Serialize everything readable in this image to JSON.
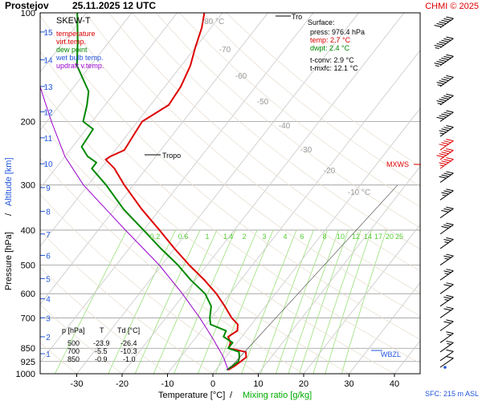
{
  "header": {
    "station": "Prostejov",
    "datetime": "25.11.2025 12 UTC",
    "copyright": "CHMI © 2025"
  },
  "legend": {
    "title": "SKEW-T",
    "items": [
      {
        "label": "temperature",
        "color": "#dd0000"
      },
      {
        "label": "virt.temp.",
        "color": "#dd0000"
      },
      {
        "label": "dew point",
        "color": "#008800"
      },
      {
        "label": "wet bulb temp.",
        "color": "#2255dd"
      },
      {
        "label": "updraft v.temp.",
        "color": "#9900cc"
      }
    ]
  },
  "surface": {
    "title": "Surface:",
    "press": "press: 976.4 hPa",
    "temp": "temp: 2.7 °C",
    "dwpt": "dwpt: 2.4 °C",
    "tconv": "t-conv: 2.9 °C",
    "tmxfc": "t-mxfc: 12.1 °C"
  },
  "table": {
    "headers": [
      "p [hPa]",
      "T",
      "Td [°C]"
    ],
    "rows": [
      [
        "500",
        "-23.9",
        "-26.4"
      ],
      [
        "700",
        "-5.5",
        "-10.3"
      ],
      [
        "850",
        "-0.9",
        "-1.0"
      ]
    ]
  },
  "labels": {
    "tropo_upper": "Tro",
    "tropo_lower": "Tropo",
    "mxws": "MXWS",
    "wbzl": "WBZL",
    "sfc": "SFC: 215 m ASL"
  },
  "chart_data": {
    "type": "line",
    "title": "SKEW-T",
    "xlabel": "Temperature [°C]",
    "xlabel_sep": "/",
    "xlabel2": "Mixing ratio [g/kg]",
    "ylabel": "Pressure [hPa]",
    "ylabel_sep": "/",
    "ylabel2": "Altitude [km]",
    "y_scale": "log",
    "ylim": [
      1000,
      100
    ],
    "xlim": [
      -39,
      43
    ],
    "grid": true,
    "x_ticks": [
      -30,
      -20,
      -10,
      0,
      10,
      20,
      30,
      40
    ],
    "y_ticks": [
      100,
      200,
      300,
      400,
      500,
      600,
      700,
      850,
      925,
      1000
    ],
    "altitude_ticks": [
      {
        "km": 1,
        "p": 880
      },
      {
        "km": 2,
        "p": 790
      },
      {
        "km": 3,
        "p": 700
      },
      {
        "km": 4,
        "p": 620
      },
      {
        "km": 5,
        "p": 545
      },
      {
        "km": 6,
        "p": 470
      },
      {
        "km": 7,
        "p": 410
      },
      {
        "km": 8,
        "p": 355
      },
      {
        "km": 9,
        "p": 305
      },
      {
        "km": 10,
        "p": 262
      },
      {
        "km": 11,
        "p": 222
      },
      {
        "km": 12,
        "p": 188
      },
      {
        "km": 13,
        "p": 160
      },
      {
        "km": 14,
        "p": 135
      },
      {
        "km": 15,
        "p": 113
      }
    ],
    "isotherm_labels": [
      {
        "text": "-80 °C",
        "t": -80
      },
      {
        "text": "-70",
        "t": -70
      },
      {
        "text": "-60",
        "t": -60
      },
      {
        "text": "-50",
        "t": -50
      },
      {
        "text": "-40",
        "t": -40
      },
      {
        "text": "-30",
        "t": -30
      },
      {
        "text": "-20",
        "t": -20
      },
      {
        "text": "-10 °C",
        "t": -10
      }
    ],
    "mixing_ratio_labels": [
      "0.2",
      "0.6",
      "1",
      "1.4",
      "2",
      "3",
      "4",
      "6",
      "8",
      "10",
      "12",
      "14",
      "17",
      "20",
      "25"
    ],
    "series": [
      {
        "name": "temperature",
        "color": "#dd0000",
        "points": [
          {
            "p": 976,
            "t": 2.7
          },
          {
            "p": 950,
            "t": 3.5
          },
          {
            "p": 925,
            "t": 4.0
          },
          {
            "p": 900,
            "t": 4.5
          },
          {
            "p": 870,
            "t": 3.5
          },
          {
            "p": 850,
            "t": -0.9
          },
          {
            "p": 820,
            "t": -1.5
          },
          {
            "p": 790,
            "t": -3.0
          },
          {
            "p": 760,
            "t": -2.0
          },
          {
            "p": 730,
            "t": -3.0
          },
          {
            "p": 700,
            "t": -5.5
          },
          {
            "p": 650,
            "t": -9.0
          },
          {
            "p": 600,
            "t": -13.0
          },
          {
            "p": 550,
            "t": -18.0
          },
          {
            "p": 500,
            "t": -23.9
          },
          {
            "p": 450,
            "t": -30.0
          },
          {
            "p": 400,
            "t": -36.5
          },
          {
            "p": 350,
            "t": -44.0
          },
          {
            "p": 300,
            "t": -52.0
          },
          {
            "p": 270,
            "t": -57.0
          },
          {
            "p": 255,
            "t": -60.5
          },
          {
            "p": 250,
            "t": -60.0
          },
          {
            "p": 240,
            "t": -58.0
          },
          {
            "p": 220,
            "t": -58.5
          },
          {
            "p": 200,
            "t": -59.0
          },
          {
            "p": 180,
            "t": -56.0
          },
          {
            "p": 160,
            "t": -56.5
          },
          {
            "p": 140,
            "t": -58.0
          },
          {
            "p": 125,
            "t": -60.0
          },
          {
            "p": 110,
            "t": -62.0
          },
          {
            "p": 100,
            "t": -64.0
          }
        ]
      },
      {
        "name": "dew point",
        "color": "#008800",
        "points": [
          {
            "p": 976,
            "t": 2.4
          },
          {
            "p": 950,
            "t": 3.0
          },
          {
            "p": 925,
            "t": 3.5
          },
          {
            "p": 900,
            "t": 3.0
          },
          {
            "p": 870,
            "t": 2.0
          },
          {
            "p": 850,
            "t": -1.0
          },
          {
            "p": 820,
            "t": -1.0
          },
          {
            "p": 790,
            "t": -4.0
          },
          {
            "p": 760,
            "t": -4.5
          },
          {
            "p": 730,
            "t": -9.0
          },
          {
            "p": 700,
            "t": -10.3
          },
          {
            "p": 650,
            "t": -12.0
          },
          {
            "p": 600,
            "t": -15.5
          },
          {
            "p": 550,
            "t": -21.0
          },
          {
            "p": 500,
            "t": -26.4
          },
          {
            "p": 450,
            "t": -33.0
          },
          {
            "p": 400,
            "t": -40.0
          },
          {
            "p": 350,
            "t": -48.0
          },
          {
            "p": 300,
            "t": -56.0
          },
          {
            "p": 270,
            "t": -62.0
          },
          {
            "p": 260,
            "t": -62.0
          },
          {
            "p": 250,
            "t": -65.0
          },
          {
            "p": 235,
            "t": -68.0
          },
          {
            "p": 210,
            "t": -68.5
          },
          {
            "p": 200,
            "t": -72.0
          },
          {
            "p": 180,
            "t": -74.0
          },
          {
            "p": 165,
            "t": -76.0
          },
          {
            "p": 140,
            "t": -83.0
          },
          {
            "p": 120,
            "t": -87.0
          },
          {
            "p": 100,
            "t": -92.0
          }
        ]
      },
      {
        "name": "updraft v.temp.",
        "color": "#9900cc",
        "points": [
          {
            "p": 976,
            "t": 2.7
          },
          {
            "p": 900,
            "t": -0.5
          },
          {
            "p": 800,
            "t": -6.0
          },
          {
            "p": 700,
            "t": -12.5
          },
          {
            "p": 600,
            "t": -20.5
          },
          {
            "p": 500,
            "t": -30.5
          },
          {
            "p": 400,
            "t": -44.0
          },
          {
            "p": 300,
            "t": -61.0
          },
          {
            "p": 250,
            "t": -70.0
          },
          {
            "p": 200,
            "t": -79.0
          },
          {
            "p": 150,
            "t": -90.0
          },
          {
            "p": 130,
            "t": -95.0
          }
        ]
      }
    ],
    "wind": [
      {
        "p": 110,
        "kt": 60
      },
      {
        "p": 125,
        "kt": 70
      },
      {
        "p": 140,
        "kt": 65
      },
      {
        "p": 160,
        "kt": 55
      },
      {
        "p": 180,
        "kt": 55
      },
      {
        "p": 200,
        "kt": 50
      },
      {
        "p": 220,
        "kt": 45
      },
      {
        "p": 240,
        "kt": 40
      },
      {
        "p": 255,
        "kt": 50
      },
      {
        "p": 270,
        "kt": 45
      },
      {
        "p": 295,
        "kt": 40
      },
      {
        "p": 330,
        "kt": 35
      },
      {
        "p": 370,
        "kt": 30
      },
      {
        "p": 410,
        "kt": 30
      },
      {
        "p": 450,
        "kt": 25
      },
      {
        "p": 500,
        "kt": 25
      },
      {
        "p": 550,
        "kt": 25
      },
      {
        "p": 600,
        "kt": 20
      },
      {
        "p": 650,
        "kt": 25
      },
      {
        "p": 700,
        "kt": 20
      },
      {
        "p": 760,
        "kt": 20
      },
      {
        "p": 820,
        "kt": 15
      },
      {
        "p": 870,
        "kt": 15
      },
      {
        "p": 920,
        "kt": 10
      },
      {
        "p": 960,
        "kt": 10
      }
    ]
  }
}
